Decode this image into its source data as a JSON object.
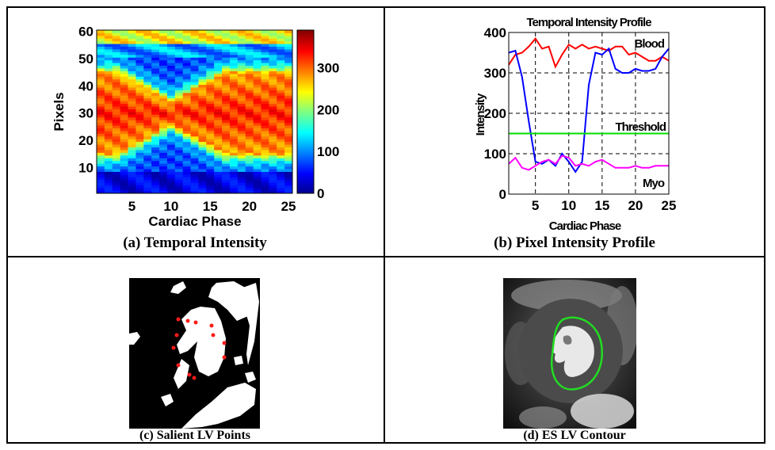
{
  "captions": {
    "a": "(a) Temporal Intensity",
    "b": "(b) Pixel Intensity Profile",
    "c": "(c) Salient LV Points",
    "d": "(d) ES LV Contour"
  },
  "chart_data": [
    {
      "type": "heatmap",
      "xlabel": "Cardiac Phase",
      "ylabel": "Pixels",
      "xlim": [
        0.5,
        25.5
      ],
      "ylim": [
        0.5,
        60.5
      ],
      "xticks": [
        5,
        10,
        15,
        20,
        25
      ],
      "yticks": [
        10,
        20,
        30,
        40,
        50,
        60
      ],
      "colorbar": {
        "range": [
          0,
          390
        ],
        "ticks": [
          0,
          100,
          200,
          300
        ],
        "colormap": "jet"
      }
    },
    {
      "type": "line",
      "title": "Temporal Intensity Profile",
      "xlabel": "Cardiac Phase",
      "ylabel": "Intensity",
      "xlim": [
        1,
        25
      ],
      "ylim": [
        0,
        400
      ],
      "xticks": [
        5,
        10,
        15,
        20,
        25
      ],
      "yticks": [
        0,
        100,
        200,
        300,
        400
      ],
      "grid": true,
      "x": [
        1,
        2,
        3,
        4,
        5,
        6,
        7,
        8,
        9,
        10,
        11,
        12,
        13,
        14,
        15,
        16,
        17,
        18,
        19,
        20,
        21,
        22,
        23,
        24,
        25
      ],
      "series": [
        {
          "name": "Blood",
          "color": "#ff0000",
          "values": [
            320,
            345,
            350,
            365,
            385,
            360,
            365,
            315,
            345,
            370,
            360,
            370,
            360,
            365,
            360,
            355,
            365,
            365,
            345,
            350,
            340,
            330,
            330,
            340,
            330
          ]
        },
        {
          "name": "",
          "color": "#0000ff",
          "values": [
            350,
            355,
            290,
            180,
            80,
            75,
            85,
            70,
            100,
            80,
            55,
            80,
            270,
            350,
            345,
            360,
            310,
            300,
            300,
            310,
            305,
            305,
            310,
            340,
            360
          ]
        },
        {
          "name": "Myo",
          "color": "#ff00ff",
          "values": [
            75,
            90,
            65,
            60,
            70,
            80,
            85,
            75,
            95,
            90,
            70,
            75,
            70,
            80,
            85,
            75,
            65,
            65,
            65,
            70,
            65,
            65,
            70,
            70,
            70
          ]
        },
        {
          "name": "Threshold",
          "color": "#00dd00",
          "values": [
            150,
            150,
            150,
            150,
            150,
            150,
            150,
            150,
            150,
            150,
            150,
            150,
            150,
            150,
            150,
            150,
            150,
            150,
            150,
            150,
            150,
            150,
            150,
            150,
            150
          ]
        }
      ]
    }
  ]
}
